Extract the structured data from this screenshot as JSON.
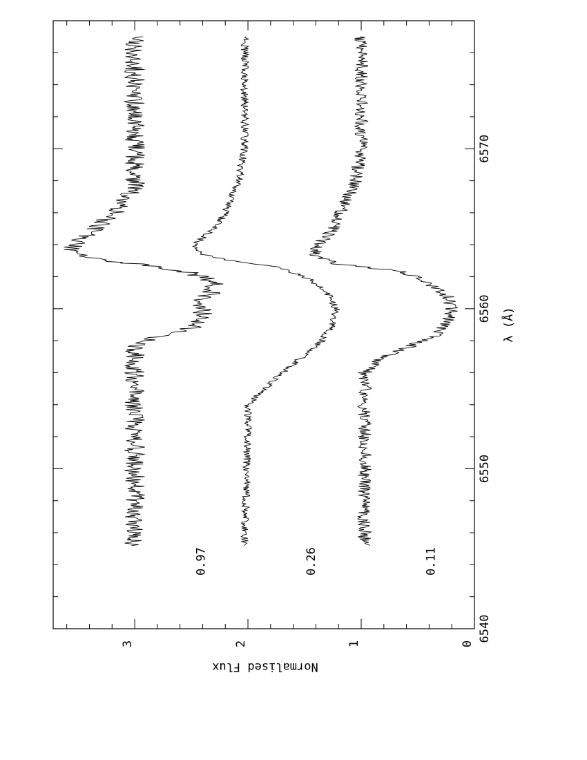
{
  "chart_data": {
    "type": "line",
    "orientation": "rotated-90-clockwise",
    "xlabel": "λ (Å)",
    "ylabel": "Normalised Flux",
    "xlim": [
      6540,
      6578
    ],
    "ylim": [
      0,
      3.72
    ],
    "x_ticks": [
      6540,
      6550,
      6560,
      6570
    ],
    "y_ticks": [
      0,
      1,
      2,
      3
    ],
    "series": [
      {
        "name": "0.97",
        "x_range": [
          6545.2,
          6577.0
        ],
        "profile": [
          [
            6545.2,
            3.0
          ],
          [
            6557.6,
            3.0
          ],
          [
            6558.3,
            2.8
          ],
          [
            6558.8,
            2.5
          ],
          [
            6559.4,
            2.42
          ],
          [
            6560.0,
            2.38
          ],
          [
            6560.6,
            2.44
          ],
          [
            6561.0,
            2.32
          ],
          [
            6561.6,
            2.28
          ],
          [
            6562.2,
            2.48
          ],
          [
            6562.6,
            2.78
          ],
          [
            6563.1,
            3.35
          ],
          [
            6563.5,
            3.58
          ],
          [
            6564.2,
            3.52
          ],
          [
            6565.0,
            3.35
          ],
          [
            6566.2,
            3.15
          ],
          [
            6567.5,
            3.0
          ],
          [
            6577.0,
            3.0
          ]
        ]
      },
      {
        "name": "0.26",
        "x_range": [
          6545.2,
          6577.0
        ],
        "profile": [
          [
            6545.2,
            2.03
          ],
          [
            6554.0,
            2.0
          ],
          [
            6555.0,
            1.85
          ],
          [
            6556.0,
            1.7
          ],
          [
            6557.0,
            1.52
          ],
          [
            6558.0,
            1.35
          ],
          [
            6559.0,
            1.25
          ],
          [
            6560.0,
            1.22
          ],
          [
            6561.0,
            1.3
          ],
          [
            6561.8,
            1.45
          ],
          [
            6562.6,
            1.72
          ],
          [
            6563.0,
            2.15
          ],
          [
            6563.4,
            2.4
          ],
          [
            6564.0,
            2.48
          ],
          [
            6565.0,
            2.3
          ],
          [
            6566.0,
            2.2
          ],
          [
            6568.0,
            2.08
          ],
          [
            6570.0,
            2.03
          ],
          [
            6577.0,
            2.03
          ]
        ]
      },
      {
        "name": "0.11",
        "x_range": [
          6545.2,
          6577.0
        ],
        "profile": [
          [
            6545.2,
            0.97
          ],
          [
            6556.0,
            0.97
          ],
          [
            6557.0,
            0.8
          ],
          [
            6557.8,
            0.52
          ],
          [
            6558.3,
            0.35
          ],
          [
            6559.2,
            0.24
          ],
          [
            6560.0,
            0.2
          ],
          [
            6560.8,
            0.24
          ],
          [
            6561.6,
            0.4
          ],
          [
            6562.3,
            0.62
          ],
          [
            6562.8,
            1.2
          ],
          [
            6563.3,
            1.42
          ],
          [
            6564.0,
            1.38
          ],
          [
            6565.0,
            1.25
          ],
          [
            6566.0,
            1.18
          ],
          [
            6568.0,
            1.05
          ],
          [
            6570.0,
            1.0
          ],
          [
            6577.0,
            1.0
          ]
        ]
      }
    ]
  }
}
